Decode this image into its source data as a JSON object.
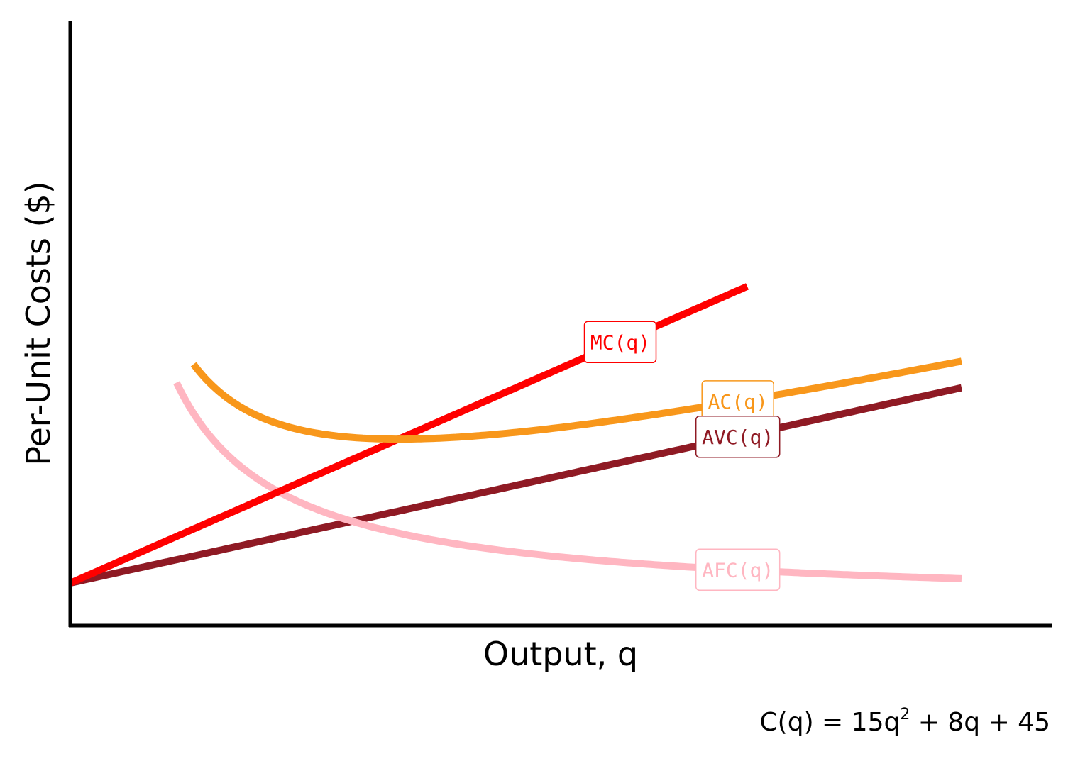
{
  "chart_data": {
    "type": "line",
    "title": "",
    "xlabel": "Output, q",
    "ylabel": "Per-Unit Costs ($)",
    "xlim": [
      0,
      4.7
    ],
    "ylim": [
      0,
      165
    ],
    "grid": false,
    "legend": "none",
    "formula": {
      "prefix": "C(q) = 15q",
      "exponent": "2",
      "suffix": " + 8q + 45"
    },
    "series": [
      {
        "name": "MC(q)",
        "label": "MC(q)",
        "color": "#FF0000",
        "formula": "30*q + 8",
        "x_range": [
          0,
          3.57
        ],
        "label_at": [
          2.9,
          0
        ]
      },
      {
        "name": "AC(q)",
        "label": "AC(q)",
        "color": "#F8971B",
        "formula": "15*q + 8 + 45/q",
        "x_range": [
          0.65,
          4.7
        ],
        "label_at": [
          3.52,
          0
        ]
      },
      {
        "name": "AVC(q)",
        "label": "AVC(q)",
        "color": "#8F1A24",
        "formula": "15*q + 8",
        "x_range": [
          0,
          4.7
        ],
        "label_at": [
          3.52,
          0
        ]
      },
      {
        "name": "AFC(q)",
        "label": "AFC(q)",
        "color": "#FFB6C1",
        "formula": "45/q",
        "x_range": [
          0.56,
          4.7
        ],
        "label_at": [
          3.52,
          0
        ]
      }
    ]
  }
}
